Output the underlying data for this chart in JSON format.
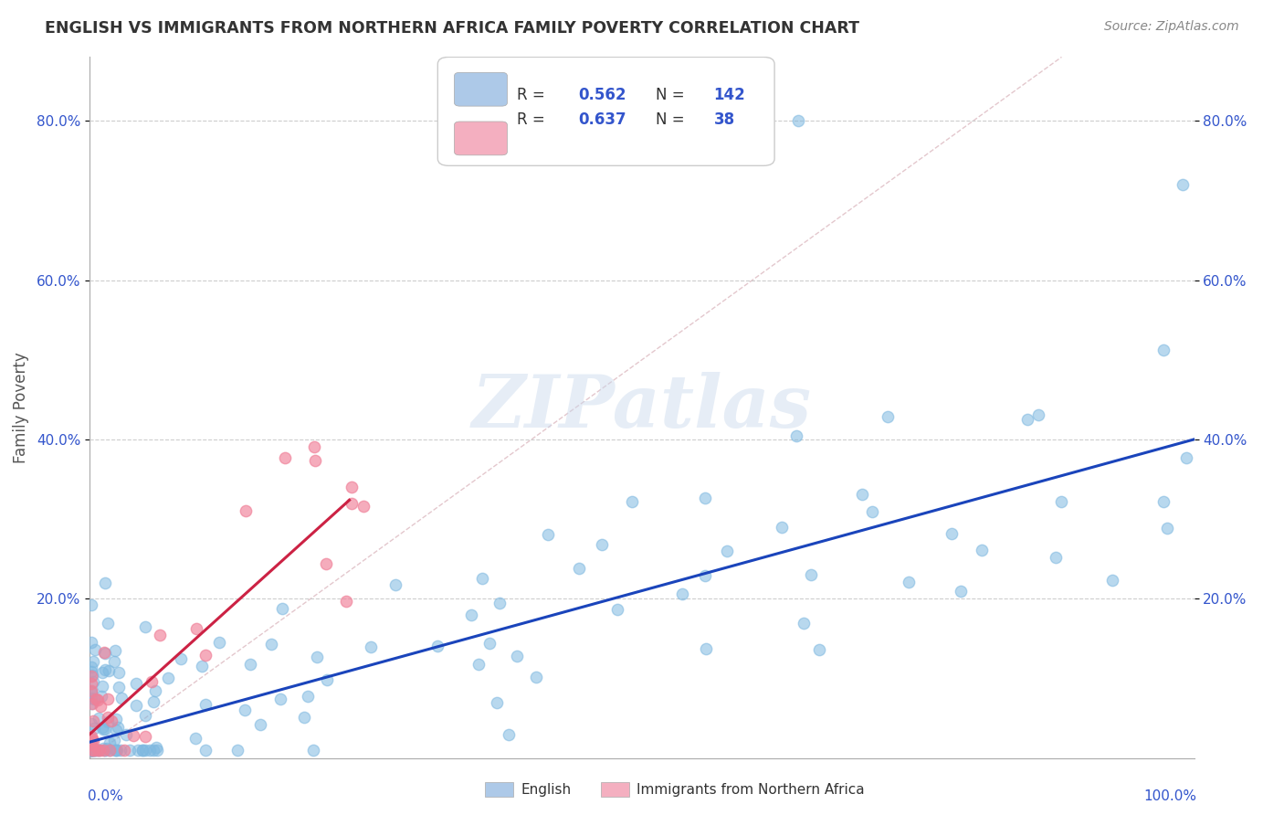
{
  "title": "ENGLISH VS IMMIGRANTS FROM NORTHERN AFRICA FAMILY POVERTY CORRELATION CHART",
  "source": "Source: ZipAtlas.com",
  "ylabel": "Family Poverty",
  "y_ticks": [
    "20.0%",
    "40.0%",
    "60.0%",
    "80.0%"
  ],
  "y_tick_vals": [
    0.2,
    0.4,
    0.6,
    0.8
  ],
  "legend_english_R": "0.562",
  "legend_english_N": "142",
  "legend_immigrants_R": "0.637",
  "legend_immigrants_N": "38",
  "legend_english_color": "#adc9e8",
  "legend_immigrants_color": "#f4afc0",
  "english_color": "#7eb8e0",
  "immigrants_color": "#f08098",
  "trendline_english_color": "#1a44bb",
  "trendline_immigrants_color": "#cc2244",
  "diagonal_color": "#e0b0b8",
  "watermark": "ZIPatlas",
  "background_color": "#ffffff",
  "grid_color": "#c8c8c8",
  "xlim": [
    0.0,
    1.0
  ],
  "ylim": [
    0.0,
    0.88
  ],
  "legend_text_color": "#3355cc",
  "title_color": "#333333",
  "source_color": "#888888",
  "axis_label_color": "#3355cc",
  "ylabel_color": "#555555"
}
